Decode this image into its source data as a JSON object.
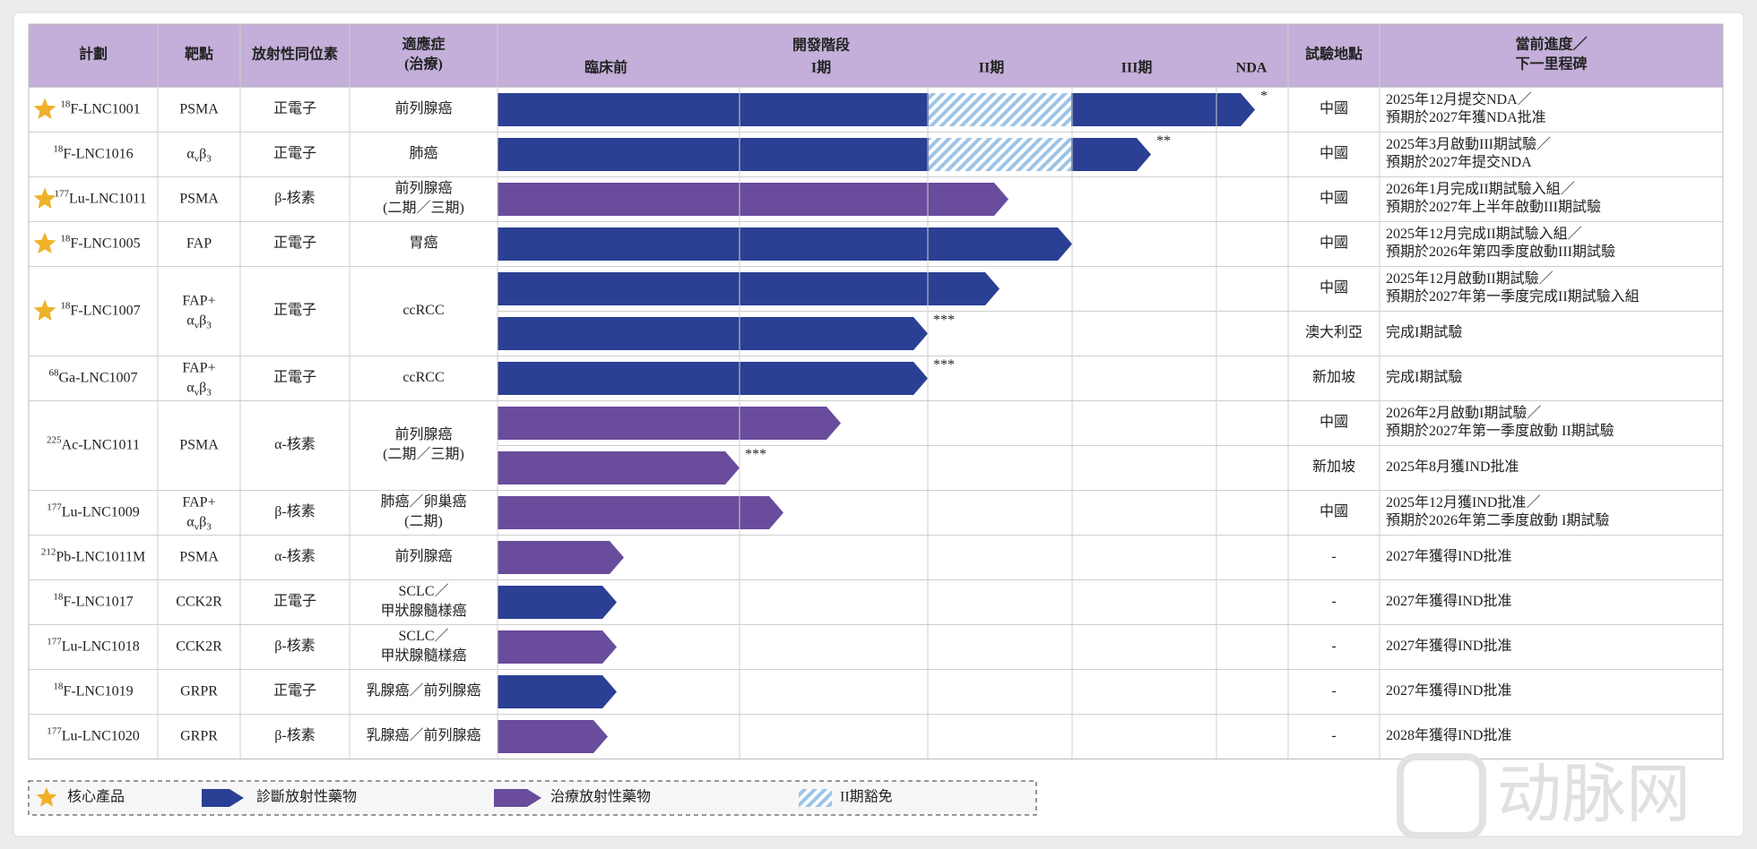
{
  "header": {
    "program": "計劃",
    "target": "靶點",
    "isotope": "放射性同位素",
    "indication": [
      "適應症",
      "(治療)"
    ],
    "stage": "開發階段",
    "stages": [
      "臨床前",
      "I期",
      "II期",
      "III期",
      "NDA"
    ],
    "site": "試驗地點",
    "milestone": [
      "當前進度／",
      "下一里程碑"
    ]
  },
  "rows": [
    {
      "mass": "18",
      "program": "F-LNC1001",
      "target": [
        "PSMA"
      ],
      "isotope": "正電子",
      "indication": [
        "前列腺癌"
      ],
      "trials": [
        {
          "site": "中國",
          "note": "*",
          "milestone": [
            "2025年12月提交NDA／",
            "預期於2027年獲NDA批准"
          ]
        }
      ]
    },
    {
      "mass": "18",
      "program": "F-LNC1016",
      "target": [
        "αvβ3"
      ],
      "isotope": "正電子",
      "indication": [
        "肺癌"
      ],
      "trials": [
        {
          "site": "中國",
          "note": "**",
          "milestone": [
            "2025年3月啟動III期試驗／",
            "預期於2027年提交NDA"
          ]
        }
      ]
    },
    {
      "mass": "177",
      "program": "Lu-LNC1011",
      "target": [
        "PSMA"
      ],
      "isotope": "β-核素",
      "indication": [
        "前列腺癌",
        "(二期／三期)"
      ],
      "trials": [
        {
          "site": "中國",
          "milestone": [
            "2026年1月完成II期試驗入組／",
            "預期於2027年上半年啟動III期試驗"
          ]
        }
      ]
    },
    {
      "mass": "18",
      "program": "F-LNC1005",
      "target": [
        "FAP"
      ],
      "isotope": "正電子",
      "indication": [
        "胃癌"
      ],
      "trials": [
        {
          "site": "中國",
          "milestone": [
            "2025年12月完成II期試驗入組／",
            "預期於2026年第四季度啟動III期試驗"
          ]
        }
      ]
    },
    {
      "mass": "18",
      "program": "F-LNC1007",
      "target": [
        "FAP+",
        "αvβ3"
      ],
      "isotope": "正電子",
      "indication": [
        "ccRCC"
      ],
      "trials": [
        {
          "site": "中國",
          "milestone": [
            "2025年12月啟動II期試驗／",
            "預期於2027年第一季度完成II期試驗入組"
          ]
        },
        {
          "site": "澳大利亞",
          "note": "***",
          "milestone": [
            "完成I期試驗"
          ]
        }
      ]
    },
    {
      "mass": "68",
      "program": "Ga-LNC1007",
      "target": [
        "FAP+",
        "αvβ3"
      ],
      "isotope": "正電子",
      "indication": [
        "ccRCC"
      ],
      "trials": [
        {
          "site": "新加坡",
          "note": "***",
          "milestone": [
            "完成I期試驗"
          ]
        }
      ]
    },
    {
      "mass": "225",
      "program": "Ac-LNC1011",
      "target": [
        "PSMA"
      ],
      "isotope": "α-核素",
      "indication": [
        "前列腺癌",
        "(二期／三期)"
      ],
      "trials": [
        {
          "site": "中國",
          "milestone": [
            "2026年2月啟動I期試驗／",
            "預期於2027年第一季度啟動 II期試驗"
          ]
        },
        {
          "site": "新加坡",
          "note": "***",
          "milestone": [
            "2025年8月獲IND批准"
          ]
        }
      ]
    },
    {
      "mass": "177",
      "program": "Lu-LNC1009",
      "target": [
        "FAP+",
        "αvβ3"
      ],
      "isotope": "β-核素",
      "indication": [
        "肺癌／卵巢癌",
        "(二期)"
      ],
      "trials": [
        {
          "site": "中國",
          "milestone": [
            "2025年12月獲IND批准／",
            "預期於2026年第二季度啟動 I期試驗"
          ]
        }
      ]
    },
    {
      "mass": "212",
      "program": "Pb-LNC1011M",
      "target": [
        "PSMA"
      ],
      "isotope": "α-核素",
      "indication": [
        "前列腺癌"
      ],
      "trials": [
        {
          "site": "-",
          "milestone": [
            "2027年獲得IND批准"
          ]
        }
      ]
    },
    {
      "mass": "18",
      "program": "F-LNC1017",
      "target": [
        "CCK2R"
      ],
      "isotope": "正電子",
      "indication": [
        "SCLC／",
        "甲狀腺髓樣癌"
      ],
      "trials": [
        {
          "site": "-",
          "milestone": [
            "2027年獲得IND批准"
          ]
        }
      ]
    },
    {
      "mass": "177",
      "program": "Lu-LNC1018",
      "target": [
        "CCK2R"
      ],
      "isotope": "β-核素",
      "indication": [
        "SCLC／",
        "甲狀腺髓樣癌"
      ],
      "trials": [
        {
          "site": "-",
          "milestone": [
            "2027年獲得IND批准"
          ]
        }
      ]
    },
    {
      "mass": "18",
      "program": "F-LNC1019",
      "target": [
        "GRPR"
      ],
      "isotope": "正電子",
      "indication": [
        "乳腺癌／前列腺癌"
      ],
      "trials": [
        {
          "site": "-",
          "milestone": [
            "2027年獲得IND批准"
          ]
        }
      ]
    },
    {
      "mass": "177",
      "program": "Lu-LNC1020",
      "target": [
        "GRPR"
      ],
      "isotope": "β-核素",
      "indication": [
        "乳腺癌／前列腺癌"
      ],
      "trials": [
        {
          "site": "-",
          "milestone": [
            "2028年獲得IND批准"
          ]
        }
      ]
    }
  ],
  "legend": [
    "核心產品",
    "診斷放射性藥物",
    "治療放射性藥物",
    "II期豁免"
  ],
  "watermark": "动脉网"
}
